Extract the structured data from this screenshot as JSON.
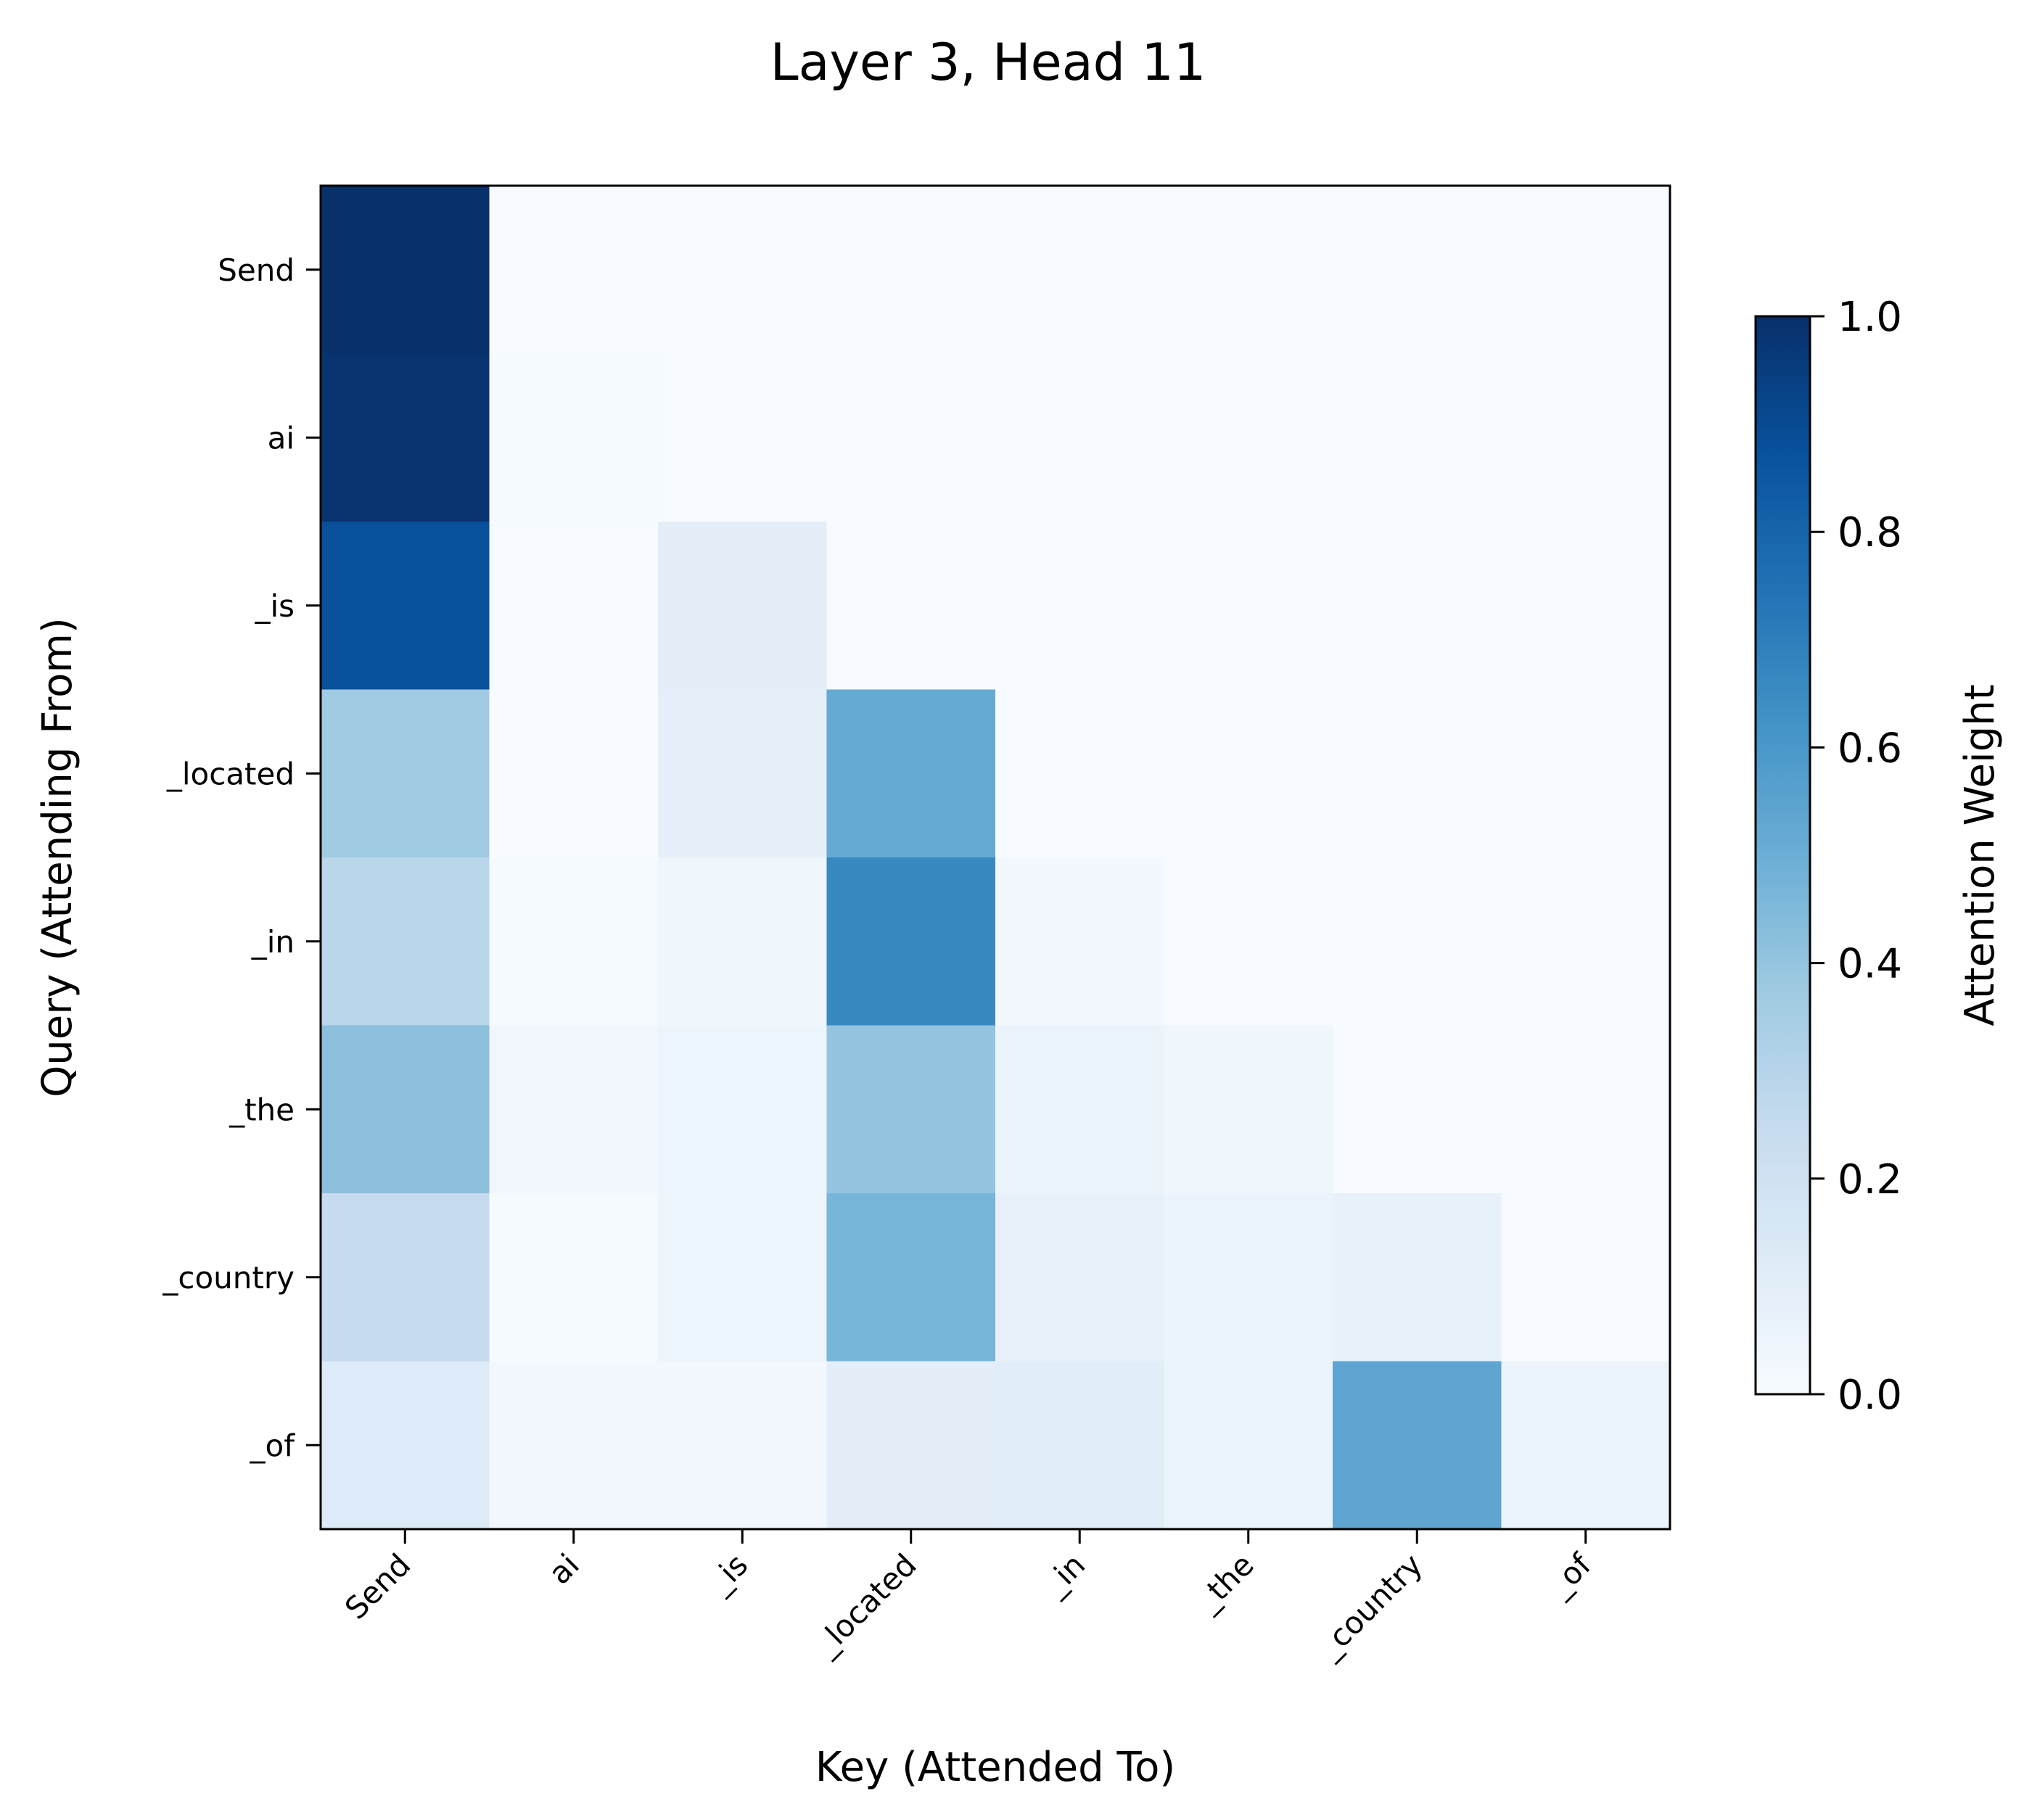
{
  "chart_data": {
    "type": "heatmap",
    "title": "Layer 3, Head 11",
    "xlabel": "Key (Attended To)",
    "ylabel": "Query (Attending From)",
    "x_tokens": [
      "Send",
      "ai",
      "_is",
      "_located",
      "_in",
      "_the",
      "_country",
      "_of"
    ],
    "y_tokens": [
      "Send",
      "ai",
      "_is",
      "_located",
      "_in",
      "_the",
      "_country",
      "_of"
    ],
    "values": [
      [
        1.0,
        0.0,
        0.0,
        0.0,
        0.0,
        0.0,
        0.0,
        0.0
      ],
      [
        0.99,
        0.01,
        0.0,
        0.0,
        0.0,
        0.0,
        0.0,
        0.0
      ],
      [
        0.88,
        0.0,
        0.1,
        0.0,
        0.0,
        0.0,
        0.0,
        0.0
      ],
      [
        0.37,
        0.0,
        0.09,
        0.52,
        0.0,
        0.0,
        0.0,
        0.0
      ],
      [
        0.29,
        0.01,
        0.04,
        0.66,
        0.02,
        0.0,
        0.0,
        0.0
      ],
      [
        0.42,
        0.03,
        0.05,
        0.4,
        0.06,
        0.04,
        0.0,
        0.0
      ],
      [
        0.25,
        0.01,
        0.05,
        0.47,
        0.08,
        0.06,
        0.08,
        0.0
      ],
      [
        0.13,
        0.02,
        0.02,
        0.1,
        0.11,
        0.06,
        0.54,
        0.06
      ]
    ],
    "colorscale": "Blues",
    "vmin": 0.0,
    "vmax": 1.0,
    "colorbar": {
      "label": "Attention Weight",
      "ticks": [
        0.0,
        0.2,
        0.4,
        0.6,
        0.8,
        1.0
      ],
      "tick_labels": [
        "0.0",
        "0.2",
        "0.4",
        "0.6",
        "0.8",
        "1.0"
      ]
    }
  }
}
